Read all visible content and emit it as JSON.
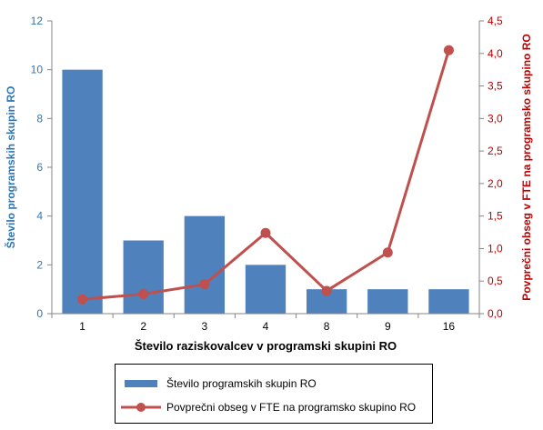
{
  "chart_data": {
    "type": "bar+line",
    "categories": [
      "1",
      "2",
      "3",
      "4",
      "8",
      "9",
      "16"
    ],
    "series": [
      {
        "name": "Število programskih skupin RO",
        "type": "bar",
        "axis": "left",
        "color": "#4f81bd",
        "values": [
          10,
          3,
          4,
          2,
          1,
          1,
          1
        ]
      },
      {
        "name": "Povprečni obseg v FTE na programsko skupino RO",
        "type": "line",
        "axis": "right",
        "color": "#c0504d",
        "values": [
          0.22,
          0.3,
          0.45,
          1.24,
          0.35,
          0.94,
          4.05
        ]
      }
    ],
    "xlabel": "Število raziskovalcev v programski skupini RO",
    "ylabel_left": "Število programskih skupin RO",
    "ylabel_right": "Povprečni obseg v FTE na programsko skupino RO",
    "ylim_left": [
      0,
      12
    ],
    "yticks_left": [
      "0",
      "2",
      "4",
      "6",
      "8",
      "10",
      "12"
    ],
    "ylim_right": [
      0,
      4.5
    ],
    "yticks_right": [
      "0,0",
      "0,5",
      "1,0",
      "1,5",
      "2,0",
      "2,5",
      "3,0",
      "3,5",
      "4,0",
      "4,5"
    ],
    "left_axis_color": "#2e75b6",
    "right_axis_color": "#c00000",
    "grid": false,
    "legend_position": "bottom"
  }
}
